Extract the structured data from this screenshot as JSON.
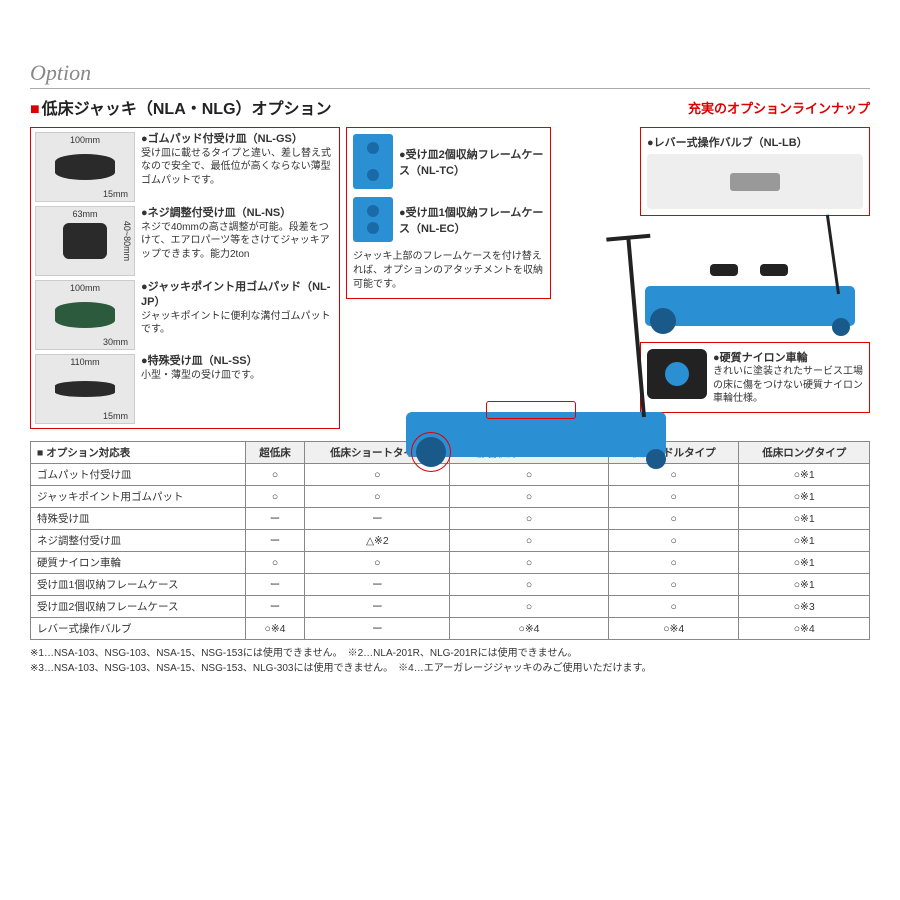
{
  "titles": {
    "option": "Option",
    "main": "低床ジャッキ（NLA・NLG）オプション",
    "sub_red": "充実のオプションラインナップ"
  },
  "left_options": [
    {
      "name": "●ゴムパッド付受け皿（NL-GS）",
      "desc": "受け皿に載せるタイプと違い、差し替え式なので安全で、最低位が高くならない薄型ゴムパットです。",
      "dim_top": "100mm",
      "dim_bot": "15mm"
    },
    {
      "name": "●ネジ調整付受け皿（NL-NS）",
      "desc": "ネジで40mmの高さ調整が可能。段差をつけて、エアロパーツ等をさけてジャッキアップできます。能力2ton",
      "dim_top": "63mm",
      "dim_side": "40~80mm"
    },
    {
      "name": "●ジャッキポイント用ゴムパッド（NL-JP）",
      "desc": "ジャッキポイントに便利な溝付ゴムパットです。",
      "dim_top": "100mm",
      "dim_bot": "30mm"
    },
    {
      "name": "●特殊受け皿（NL-SS）",
      "desc": "小型・薄型の受け皿です。",
      "dim_top": "110mm",
      "dim_bot": "15mm"
    }
  ],
  "center": {
    "item1": "●受け皿2個収納フレームケース（NL-TC）",
    "item2": "●受け皿1個収納フレームケース（NL-EC）",
    "note": "ジャッキ上部のフレームケースを付け替えれば、オプションのアタッチメントを収納可能です。"
  },
  "right": {
    "lever_name": "●レバー式操作バルブ（NL-LB）",
    "wheel_name": "●硬質ナイロン車輪",
    "wheel_desc": "きれいに塗装されたサービス工場の床に傷をつけない硬質ナイロン車輪仕様。"
  },
  "table": {
    "header_corner": "■ オプション対応表",
    "cols": [
      "超低床",
      "低床ショートタイプ",
      "静音低床ミドルタイプ",
      "低床ミドルタイプ",
      "低床ロングタイプ"
    ],
    "rows": [
      {
        "label": "ゴムパット付受け皿",
        "c": [
          "○",
          "○",
          "○",
          "○",
          "○※1"
        ]
      },
      {
        "label": "ジャッキポイント用ゴムパット",
        "c": [
          "○",
          "○",
          "○",
          "○",
          "○※1"
        ]
      },
      {
        "label": "特殊受け皿",
        "c": [
          "ー",
          "ー",
          "○",
          "○",
          "○※1"
        ]
      },
      {
        "label": "ネジ調整付受け皿",
        "c": [
          "ー",
          "△※2",
          "○",
          "○",
          "○※1"
        ]
      },
      {
        "label": "硬質ナイロン車輪",
        "c": [
          "○",
          "○",
          "○",
          "○",
          "○※1"
        ]
      },
      {
        "label": "受け皿1個収納フレームケース",
        "c": [
          "ー",
          "ー",
          "○",
          "○",
          "○※1"
        ]
      },
      {
        "label": "受け皿2個収納フレームケース",
        "c": [
          "ー",
          "ー",
          "○",
          "○",
          "○※3"
        ]
      },
      {
        "label": "レバー式操作バルブ",
        "c": [
          "○※4",
          "ー",
          "○※4",
          "○※4",
          "○※4"
        ]
      }
    ]
  },
  "footnotes": {
    "l1": "※1…NSA-103、NSG-103、NSA-15、NSG-153には使用できません。　※2…NLA-201R、NLG-201Rには使用できません。",
    "l2": "※3…NSA-103、NSG-103、NSA-15、NSG-153、NLG-303には使用できません。　※4…エアーガレージジャッキのみご使用いただけます。"
  }
}
